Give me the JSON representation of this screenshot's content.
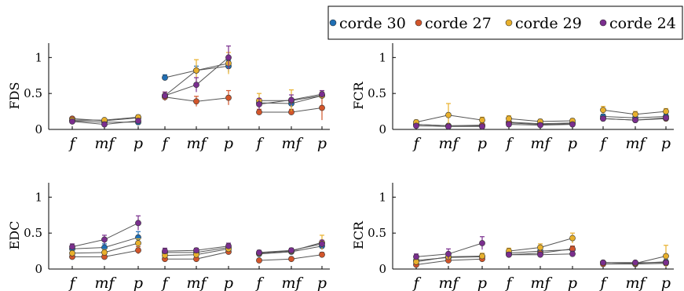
{
  "chart_data": {
    "type": "scatter",
    "legend": {
      "placement": "top-right",
      "entries": [
        "corde 30",
        "corde 27",
        "corde 29",
        "corde 24"
      ]
    },
    "series_colors": {
      "corde 30": "#1f6fb5",
      "corde 27": "#d2552a",
      "corde 29": "#e8b02c",
      "corde 24": "#7a2e8e"
    },
    "x_ticks": [
      "f",
      "mf",
      "p",
      "f",
      "mf",
      "p",
      "f",
      "mf",
      "p"
    ],
    "panels": [
      {
        "ylabel": "FDS",
        "ylim": [
          0,
          1.2
        ],
        "yticks": [
          "0",
          "0.5",
          "1"
        ],
        "series": [
          {
            "name": "corde 30",
            "values": [
              0.12,
              0.1,
              0.1,
              0.72,
              0.82,
              0.88,
              0.37,
              0.36,
              0.47
            ],
            "err": [
              0.02,
              0.02,
              0.03,
              0.04,
              0.06,
              0.08,
              0.06,
              0.06,
              0.05
            ]
          },
          {
            "name": "corde 27",
            "values": [
              0.15,
              0.12,
              0.16,
              0.45,
              0.39,
              0.44,
              0.24,
              0.24,
              0.3
            ],
            "err": [
              0.02,
              0.02,
              0.03,
              0.05,
              0.07,
              0.1,
              0.04,
              0.04,
              0.17
            ]
          },
          {
            "name": "corde 29",
            "values": [
              0.13,
              0.13,
              0.17,
              0.47,
              0.82,
              0.92,
              0.4,
              0.4,
              0.47
            ],
            "err": [
              0.02,
              0.02,
              0.03,
              0.05,
              0.15,
              0.15,
              0.1,
              0.15,
              0.05
            ]
          },
          {
            "name": "corde 24",
            "values": [
              0.11,
              0.07,
              0.12,
              0.47,
              0.62,
              1.0,
              0.35,
              0.41,
              0.49
            ],
            "err": [
              0.02,
              0.02,
              0.03,
              0.05,
              0.1,
              0.16,
              0.08,
              0.07,
              0.05
            ]
          }
        ]
      },
      {
        "ylabel": "FCR",
        "ylim": [
          0,
          1.2
        ],
        "yticks": [
          "0",
          "0.5",
          "1"
        ],
        "series": [
          {
            "name": "corde 30",
            "values": [
              0.07,
              0.05,
              0.05,
              0.1,
              0.08,
              0.09,
              0.18,
              0.16,
              0.18
            ],
            "err": [
              0.02,
              0.02,
              0.02,
              0.03,
              0.02,
              0.02,
              0.03,
              0.03,
              0.03
            ]
          },
          {
            "name": "corde 27",
            "values": [
              0.07,
              0.05,
              0.06,
              0.09,
              0.07,
              0.08,
              0.15,
              0.13,
              0.15
            ],
            "err": [
              0.02,
              0.02,
              0.02,
              0.03,
              0.02,
              0.02,
              0.03,
              0.03,
              0.03
            ]
          },
          {
            "name": "corde 29",
            "values": [
              0.1,
              0.2,
              0.13,
              0.15,
              0.11,
              0.12,
              0.27,
              0.21,
              0.25
            ],
            "err": [
              0.03,
              0.16,
              0.04,
              0.04,
              0.03,
              0.03,
              0.05,
              0.04,
              0.04
            ]
          },
          {
            "name": "corde 24",
            "values": [
              0.05,
              0.04,
              0.04,
              0.07,
              0.06,
              0.07,
              0.15,
              0.13,
              0.16
            ],
            "err": [
              0.02,
              0.01,
              0.02,
              0.02,
              0.02,
              0.02,
              0.03,
              0.03,
              0.03
            ]
          }
        ]
      },
      {
        "ylabel": "EDC",
        "ylim": [
          0,
          1.2
        ],
        "yticks": [
          "0",
          "0.5",
          "1"
        ],
        "series": [
          {
            "name": "corde 30",
            "values": [
              0.28,
              0.3,
              0.44,
              0.23,
              0.23,
              0.3,
              0.21,
              0.24,
              0.32
            ],
            "err": [
              0.03,
              0.05,
              0.08,
              0.03,
              0.03,
              0.04,
              0.03,
              0.03,
              0.05
            ]
          },
          {
            "name": "corde 27",
            "values": [
              0.17,
              0.17,
              0.26,
              0.14,
              0.14,
              0.24,
              0.12,
              0.14,
              0.2
            ],
            "err": [
              0.03,
              0.03,
              0.05,
              0.03,
              0.02,
              0.03,
              0.02,
              0.02,
              0.03
            ]
          },
          {
            "name": "corde 29",
            "values": [
              0.22,
              0.23,
              0.36,
              0.19,
              0.2,
              0.28,
              0.22,
              0.25,
              0.37
            ],
            "err": [
              0.03,
              0.04,
              0.06,
              0.03,
              0.03,
              0.04,
              0.03,
              0.03,
              0.1
            ]
          },
          {
            "name": "corde 24",
            "values": [
              0.31,
              0.41,
              0.64,
              0.25,
              0.26,
              0.32,
              0.23,
              0.26,
              0.35
            ],
            "err": [
              0.04,
              0.06,
              0.1,
              0.04,
              0.03,
              0.04,
              0.03,
              0.03,
              0.05
            ]
          }
        ]
      },
      {
        "ylabel": "ECR",
        "ylim": [
          0,
          1.2
        ],
        "yticks": [
          "0",
          "0.5",
          "1"
        ],
        "series": [
          {
            "name": "corde 30",
            "values": [
              0.12,
              0.16,
              0.17,
              0.22,
              0.25,
              0.27,
              0.09,
              0.08,
              0.1
            ],
            "err": [
              0.03,
              0.03,
              0.04,
              0.03,
              0.03,
              0.04,
              0.02,
              0.02,
              0.03
            ]
          },
          {
            "name": "corde 27",
            "values": [
              0.06,
              0.12,
              0.14,
              0.2,
              0.22,
              0.28,
              0.07,
              0.07,
              0.08
            ],
            "err": [
              0.02,
              0.03,
              0.03,
              0.03,
              0.03,
              0.04,
              0.02,
              0.02,
              0.02
            ]
          },
          {
            "name": "corde 29",
            "values": [
              0.1,
              0.17,
              0.18,
              0.25,
              0.3,
              0.43,
              0.09,
              0.08,
              0.18
            ],
            "err": [
              0.03,
              0.04,
              0.04,
              0.04,
              0.05,
              0.07,
              0.02,
              0.02,
              0.15
            ]
          },
          {
            "name": "corde 24",
            "values": [
              0.17,
              0.21,
              0.36,
              0.2,
              0.2,
              0.21,
              0.09,
              0.09,
              0.09
            ],
            "err": [
              0.04,
              0.07,
              0.09,
              0.03,
              0.03,
              0.04,
              0.02,
              0.02,
              0.02
            ]
          }
        ]
      }
    ]
  }
}
